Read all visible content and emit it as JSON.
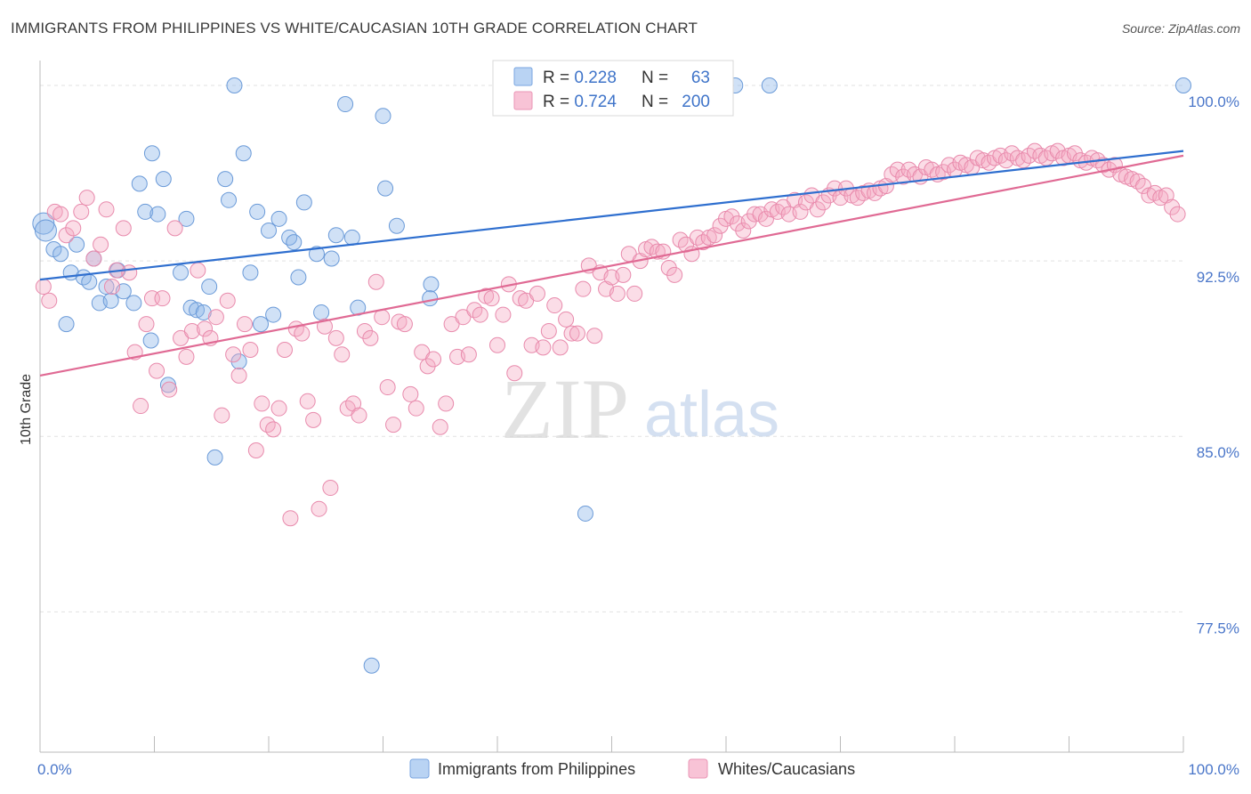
{
  "title": "IMMIGRANTS FROM PHILIPPINES VS WHITE/CAUCASIAN 10TH GRADE CORRELATION CHART",
  "source": "Source: ZipAtlas.com",
  "watermark": {
    "zip": "ZIP",
    "atlas": "atlas"
  },
  "chart_data": {
    "type": "scatter",
    "xlabel": "",
    "ylabel": "10th Grade",
    "xlim": [
      0,
      100
    ],
    "ylim": [
      71.5,
      100.8
    ],
    "x_tick_labels": [
      {
        "value": 0,
        "label": "0.0%"
      },
      {
        "value": 100,
        "label": "100.0%"
      }
    ],
    "y_tick_labels": [
      {
        "value": 100,
        "label": "100.0%"
      },
      {
        "value": 92.5,
        "label": "92.5%"
      },
      {
        "value": 85,
        "label": "85.0%"
      },
      {
        "value": 77.5,
        "label": "77.5%"
      }
    ],
    "grid": true,
    "legend": {
      "placement": "top-center",
      "rows": [
        {
          "r_label": "R = ",
          "r_value": "0.228",
          "n_label": "N = ",
          "n_value": "63"
        },
        {
          "r_label": "R = ",
          "r_value": "0.724",
          "n_label": "N = ",
          "n_value": "200"
        }
      ]
    },
    "series": [
      {
        "name": "Immigrants from Philippines",
        "color": "#8ab4e8",
        "stroke": "#6a9ad8",
        "line_color": "#2f6fcf",
        "trend": {
          "x": [
            0,
            100
          ],
          "y": [
            91.7,
            97.2
          ]
        },
        "points": [
          [
            0.3,
            94.1
          ],
          [
            0.5,
            93.8
          ],
          [
            1.2,
            93.0
          ],
          [
            1.8,
            92.8
          ],
          [
            2.3,
            89.8
          ],
          [
            2.7,
            92.0
          ],
          [
            3.2,
            93.2
          ],
          [
            3.8,
            91.8
          ],
          [
            4.3,
            91.6
          ],
          [
            4.7,
            92.6
          ],
          [
            5.2,
            90.7
          ],
          [
            5.8,
            91.4
          ],
          [
            6.2,
            90.8
          ],
          [
            6.8,
            92.1
          ],
          [
            7.3,
            91.2
          ],
          [
            8.2,
            90.7
          ],
          [
            8.7,
            95.8
          ],
          [
            9.2,
            94.6
          ],
          [
            9.7,
            89.1
          ],
          [
            9.8,
            97.1
          ],
          [
            10.3,
            94.5
          ],
          [
            10.8,
            96.0
          ],
          [
            11.2,
            87.2
          ],
          [
            12.3,
            92.0
          ],
          [
            12.8,
            94.3
          ],
          [
            13.2,
            90.5
          ],
          [
            13.7,
            90.4
          ],
          [
            14.3,
            90.3
          ],
          [
            14.8,
            91.4
          ],
          [
            15.3,
            84.1
          ],
          [
            16.2,
            96.0
          ],
          [
            16.5,
            95.1
          ],
          [
            17.0,
            100.0
          ],
          [
            17.4,
            88.2
          ],
          [
            17.8,
            97.1
          ],
          [
            18.4,
            92.0
          ],
          [
            19.0,
            94.6
          ],
          [
            19.3,
            89.8
          ],
          [
            20.0,
            93.8
          ],
          [
            20.4,
            90.2
          ],
          [
            20.9,
            94.3
          ],
          [
            21.8,
            93.5
          ],
          [
            22.2,
            93.3
          ],
          [
            22.6,
            91.8
          ],
          [
            23.1,
            95.0
          ],
          [
            24.2,
            92.8
          ],
          [
            24.6,
            90.3
          ],
          [
            25.5,
            92.6
          ],
          [
            25.9,
            93.6
          ],
          [
            26.7,
            99.2
          ],
          [
            27.3,
            93.5
          ],
          [
            27.8,
            90.5
          ],
          [
            29.0,
            75.2
          ],
          [
            30.0,
            98.7
          ],
          [
            30.2,
            95.6
          ],
          [
            31.2,
            94.0
          ],
          [
            34.2,
            91.5
          ],
          [
            34.1,
            90.9
          ],
          [
            47.7,
            81.7
          ],
          [
            60.8,
            100.0
          ],
          [
            63.8,
            100.0
          ],
          [
            100,
            100.0
          ]
        ]
      },
      {
        "name": "Whites/Caucasians",
        "color": "#f4a9c3",
        "stroke": "#e88aac",
        "line_color": "#e06a94",
        "trend": {
          "x": [
            0,
            100
          ],
          "y": [
            87.6,
            97.0
          ]
        },
        "points": [
          [
            0.3,
            91.4
          ],
          [
            0.8,
            90.8
          ],
          [
            1.3,
            94.6
          ],
          [
            1.8,
            94.5
          ],
          [
            2.3,
            93.6
          ],
          [
            2.9,
            93.9
          ],
          [
            3.6,
            94.6
          ],
          [
            4.1,
            95.2
          ],
          [
            4.7,
            92.6
          ],
          [
            5.3,
            93.2
          ],
          [
            5.8,
            94.7
          ],
          [
            6.3,
            91.4
          ],
          [
            6.7,
            92.1
          ],
          [
            7.3,
            93.9
          ],
          [
            7.8,
            92.0
          ],
          [
            8.3,
            88.6
          ],
          [
            8.8,
            86.3
          ],
          [
            9.3,
            89.8
          ],
          [
            9.8,
            90.9
          ],
          [
            10.2,
            87.8
          ],
          [
            10.7,
            90.9
          ],
          [
            11.3,
            87.0
          ],
          [
            11.8,
            93.9
          ],
          [
            12.3,
            89.2
          ],
          [
            12.8,
            88.4
          ],
          [
            13.3,
            89.5
          ],
          [
            13.8,
            92.1
          ],
          [
            14.4,
            89.6
          ],
          [
            14.9,
            89.2
          ],
          [
            15.4,
            90.1
          ],
          [
            15.9,
            85.9
          ],
          [
            16.4,
            90.8
          ],
          [
            16.9,
            88.5
          ],
          [
            17.4,
            87.6
          ],
          [
            17.9,
            89.8
          ],
          [
            18.4,
            88.7
          ],
          [
            18.9,
            84.4
          ],
          [
            19.4,
            86.4
          ],
          [
            19.9,
            85.5
          ],
          [
            20.4,
            85.3
          ],
          [
            20.9,
            86.2
          ],
          [
            21.4,
            88.7
          ],
          [
            21.9,
            81.5
          ],
          [
            22.4,
            89.6
          ],
          [
            22.9,
            89.4
          ],
          [
            23.4,
            86.5
          ],
          [
            23.9,
            85.7
          ],
          [
            24.4,
            81.9
          ],
          [
            24.9,
            89.7
          ],
          [
            25.4,
            82.8
          ],
          [
            25.9,
            89.2
          ],
          [
            26.4,
            88.5
          ],
          [
            26.9,
            86.2
          ],
          [
            27.4,
            86.4
          ],
          [
            27.9,
            85.9
          ],
          [
            28.4,
            89.5
          ],
          [
            28.9,
            89.2
          ],
          [
            29.4,
            91.6
          ],
          [
            29.9,
            90.1
          ],
          [
            30.4,
            87.1
          ],
          [
            30.9,
            85.5
          ],
          [
            31.4,
            89.9
          ],
          [
            31.9,
            89.8
          ],
          [
            32.4,
            86.8
          ],
          [
            32.9,
            86.2
          ],
          [
            33.4,
            88.6
          ],
          [
            33.9,
            88.0
          ],
          [
            34.4,
            88.3
          ],
          [
            35.0,
            85.4
          ],
          [
            35.5,
            86.4
          ],
          [
            36.0,
            89.8
          ],
          [
            36.5,
            88.4
          ],
          [
            37.0,
            90.1
          ],
          [
            37.5,
            88.5
          ],
          [
            38.0,
            90.4
          ],
          [
            38.5,
            90.2
          ],
          [
            39.0,
            91.0
          ],
          [
            39.5,
            90.9
          ],
          [
            40.0,
            88.9
          ],
          [
            40.5,
            90.2
          ],
          [
            41.0,
            91.5
          ],
          [
            41.5,
            87.7
          ],
          [
            42.0,
            90.9
          ],
          [
            42.5,
            90.8
          ],
          [
            43.0,
            88.9
          ],
          [
            43.5,
            91.1
          ],
          [
            44.0,
            88.8
          ],
          [
            44.5,
            89.5
          ],
          [
            45.0,
            90.6
          ],
          [
            45.5,
            88.8
          ],
          [
            46.0,
            90.0
          ],
          [
            46.5,
            89.4
          ],
          [
            47.0,
            89.4
          ],
          [
            47.5,
            91.3
          ],
          [
            48.0,
            92.3
          ],
          [
            48.5,
            89.3
          ],
          [
            49.0,
            92.0
          ],
          [
            49.5,
            91.3
          ],
          [
            50.0,
            91.8
          ],
          [
            50.5,
            91.1
          ],
          [
            51.0,
            91.9
          ],
          [
            51.5,
            92.8
          ],
          [
            52.0,
            91.1
          ],
          [
            52.5,
            92.5
          ],
          [
            53.0,
            93.0
          ],
          [
            53.5,
            93.1
          ],
          [
            54.0,
            92.9
          ],
          [
            54.5,
            92.9
          ],
          [
            55.0,
            92.2
          ],
          [
            55.5,
            91.9
          ],
          [
            56.0,
            93.4
          ],
          [
            56.5,
            93.2
          ],
          [
            57.0,
            92.8
          ],
          [
            57.5,
            93.5
          ],
          [
            58.0,
            93.3
          ],
          [
            58.5,
            93.5
          ],
          [
            59.0,
            93.6
          ],
          [
            59.5,
            94.0
          ],
          [
            60.0,
            94.3
          ],
          [
            60.5,
            94.4
          ],
          [
            61.0,
            94.1
          ],
          [
            61.5,
            93.8
          ],
          [
            62.0,
            94.2
          ],
          [
            62.5,
            94.5
          ],
          [
            63.0,
            94.5
          ],
          [
            63.5,
            94.3
          ],
          [
            64.0,
            94.7
          ],
          [
            64.5,
            94.6
          ],
          [
            65.0,
            94.8
          ],
          [
            65.5,
            94.5
          ],
          [
            66.0,
            95.1
          ],
          [
            66.5,
            94.6
          ],
          [
            67.0,
            95.0
          ],
          [
            67.5,
            95.3
          ],
          [
            68.0,
            94.7
          ],
          [
            68.5,
            95.0
          ],
          [
            69.0,
            95.3
          ],
          [
            69.5,
            95.6
          ],
          [
            70.0,
            95.2
          ],
          [
            70.5,
            95.6
          ],
          [
            71.0,
            95.3
          ],
          [
            71.5,
            95.2
          ],
          [
            72.0,
            95.4
          ],
          [
            72.5,
            95.5
          ],
          [
            73.0,
            95.4
          ],
          [
            73.5,
            95.6
          ],
          [
            74.0,
            95.7
          ],
          [
            74.5,
            96.2
          ],
          [
            75.0,
            96.4
          ],
          [
            75.5,
            96.1
          ],
          [
            76.0,
            96.4
          ],
          [
            76.5,
            96.2
          ],
          [
            77.0,
            96.1
          ],
          [
            77.5,
            96.5
          ],
          [
            78.0,
            96.4
          ],
          [
            78.5,
            96.2
          ],
          [
            79.0,
            96.3
          ],
          [
            79.5,
            96.6
          ],
          [
            80.0,
            96.4
          ],
          [
            80.5,
            96.7
          ],
          [
            81.0,
            96.6
          ],
          [
            81.5,
            96.5
          ],
          [
            82.0,
            96.9
          ],
          [
            82.5,
            96.8
          ],
          [
            83.0,
            96.7
          ],
          [
            83.5,
            96.9
          ],
          [
            84.0,
            97.0
          ],
          [
            84.5,
            96.8
          ],
          [
            85.0,
            97.1
          ],
          [
            85.5,
            96.9
          ],
          [
            86.0,
            96.8
          ],
          [
            86.5,
            97.0
          ],
          [
            87.0,
            97.2
          ],
          [
            87.5,
            97.0
          ],
          [
            88.0,
            96.9
          ],
          [
            88.5,
            97.1
          ],
          [
            89.0,
            97.2
          ],
          [
            89.5,
            96.9
          ],
          [
            90.0,
            97.0
          ],
          [
            90.5,
            97.1
          ],
          [
            91.0,
            96.8
          ],
          [
            91.5,
            96.7
          ],
          [
            92.0,
            96.9
          ],
          [
            92.5,
            96.8
          ],
          [
            93.0,
            96.6
          ],
          [
            93.5,
            96.4
          ],
          [
            94.0,
            96.6
          ],
          [
            94.5,
            96.2
          ],
          [
            95.0,
            96.1
          ],
          [
            95.5,
            96.0
          ],
          [
            96.0,
            95.9
          ],
          [
            96.5,
            95.7
          ],
          [
            97.0,
            95.3
          ],
          [
            97.5,
            95.4
          ],
          [
            98.0,
            95.2
          ],
          [
            98.5,
            95.3
          ],
          [
            99.0,
            94.8
          ],
          [
            99.5,
            94.5
          ]
        ]
      }
    ]
  }
}
